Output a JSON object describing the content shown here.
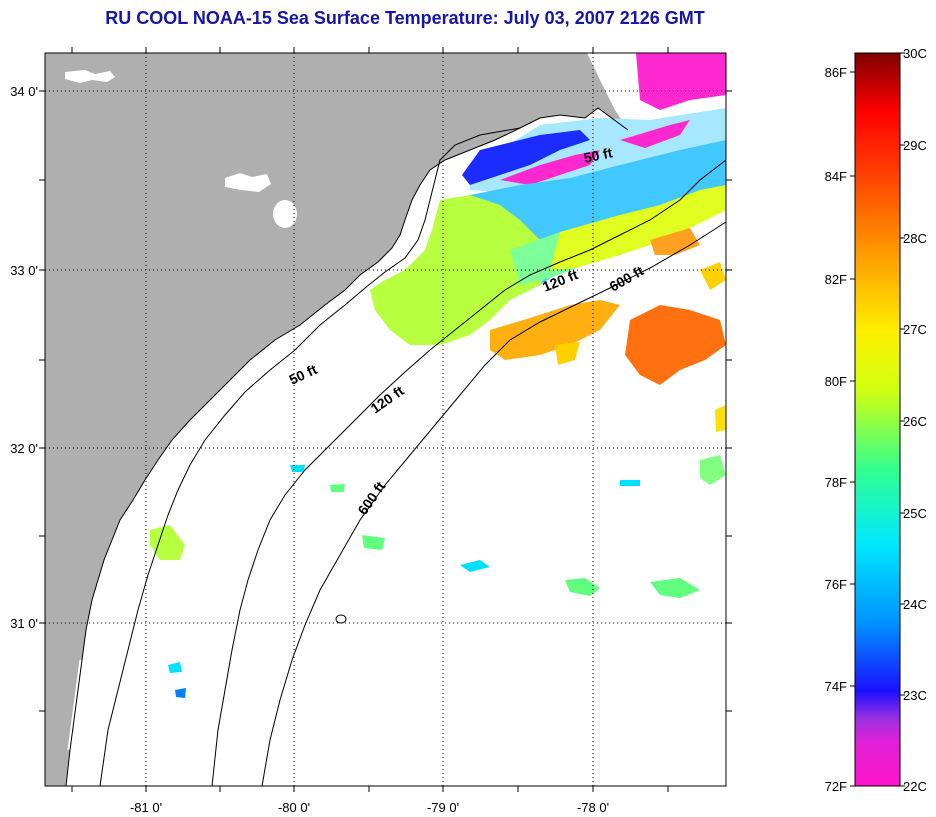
{
  "title": "RU COOL  NOAA-15  Sea Surface Temperature:  July 03, 2007 2126 GMT",
  "map": {
    "lat_labels": [
      "34 0'",
      "33 0'",
      "32 0'",
      "31 0'"
    ],
    "lon_labels": [
      "-81 0'",
      "-80 0'",
      "-79 0'",
      "-78 0'"
    ],
    "contours": [
      "50 ft",
      "120 ft",
      "600 ft"
    ],
    "contour_labels": [
      {
        "text": "50 ft",
        "which": "50 ft"
      },
      {
        "text": "50 ft",
        "which": "50 ft"
      },
      {
        "text": "120 ft",
        "which": "120 ft"
      },
      {
        "text": "120 ft",
        "which": "120 ft"
      },
      {
        "text": "600 ft",
        "which": "600 ft"
      },
      {
        "text": "600 ft",
        "which": "600 ft"
      }
    ],
    "colors": {
      "land": "#afafaf",
      "ocean": "#ffffff",
      "title": "#1616a8"
    }
  },
  "colorbar": {
    "celsius_labels": [
      "30C",
      "29C",
      "28C",
      "27C",
      "26C",
      "25C",
      "24C",
      "23C",
      "22C"
    ],
    "fahrenheit_labels": [
      "86F",
      "84F",
      "82F",
      "80F",
      "78F",
      "76F",
      "74F",
      "72F"
    ],
    "range_c": [
      22,
      30
    ],
    "range_f": [
      72,
      86
    ],
    "stops": [
      "#ff14c8",
      "#a030e0",
      "#1a10ff",
      "#0090ff",
      "#00e8ff",
      "#30ff90",
      "#d0ff10",
      "#fff000",
      "#ffa000",
      "#ff3c00",
      "#ff0000",
      "#800000"
    ]
  }
}
